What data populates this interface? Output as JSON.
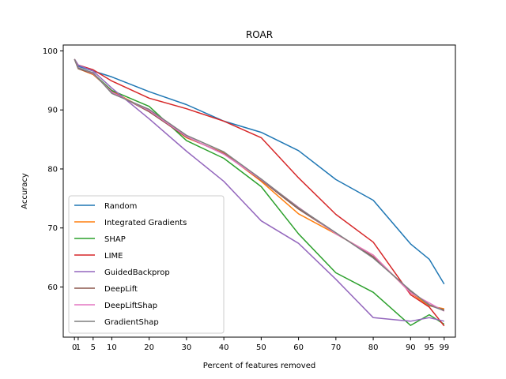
{
  "chart_data": {
    "type": "line",
    "title": "ROAR",
    "xlabel": "Percent of features removed",
    "ylabel": "Accuracy",
    "x": [
      0,
      1,
      5,
      10,
      20,
      30,
      40,
      50,
      60,
      70,
      80,
      90,
      95,
      99
    ],
    "xticks": [
      0,
      1,
      5,
      10,
      20,
      30,
      40,
      50,
      60,
      70,
      80,
      90,
      95,
      99
    ],
    "yticks": [
      60,
      70,
      80,
      90,
      100
    ],
    "xlim": [
      -3,
      102
    ],
    "ylim": [
      51.5,
      101
    ],
    "grid": false,
    "legend_position": "lower-left",
    "series": [
      {
        "name": "Random",
        "color": "#1f77b4",
        "values": [
          98.6,
          97.4,
          96.6,
          95.6,
          93.1,
          90.9,
          88.1,
          86.2,
          83.1,
          78.2,
          74.7,
          67.3,
          64.7,
          60.5
        ]
      },
      {
        "name": "Integrated Gradients",
        "color": "#ff7f0e",
        "values": [
          98.6,
          97.0,
          96.0,
          93.2,
          89.8,
          85.3,
          82.7,
          77.9,
          72.4,
          69.0,
          65.4,
          59.0,
          56.8,
          56.3
        ]
      },
      {
        "name": "SHAP",
        "color": "#2ca02c",
        "values": [
          98.6,
          97.2,
          96.2,
          93.3,
          90.6,
          84.8,
          81.8,
          77.0,
          69.0,
          62.4,
          59.1,
          53.5,
          55.3,
          53.7
        ]
      },
      {
        "name": "LIME",
        "color": "#d62728",
        "values": [
          98.6,
          97.6,
          96.8,
          94.9,
          92.0,
          90.2,
          88.1,
          85.3,
          78.5,
          72.3,
          67.6,
          58.7,
          56.6,
          53.4
        ]
      },
      {
        "name": "GuidedBackprop",
        "color": "#9467bd",
        "values": [
          98.6,
          97.6,
          96.6,
          93.7,
          88.5,
          83.0,
          77.9,
          71.2,
          67.4,
          61.3,
          54.8,
          54.2,
          54.8,
          54.2
        ]
      },
      {
        "name": "DeepLift",
        "color": "#8c564b",
        "values": [
          98.6,
          97.0,
          96.1,
          93.1,
          89.7,
          85.4,
          82.6,
          78.1,
          73.2,
          69.1,
          65.1,
          59.3,
          57.0,
          56.1
        ]
      },
      {
        "name": "DeepLiftShap",
        "color": "#e377c2",
        "values": [
          98.6,
          97.2,
          96.2,
          93.0,
          89.9,
          85.5,
          82.5,
          78.2,
          73.5,
          69.0,
          65.4,
          59.0,
          57.3,
          55.9
        ]
      },
      {
        "name": "GradientShap",
        "color": "#7f7f7f",
        "values": [
          98.6,
          97.1,
          96.3,
          92.8,
          90.1,
          85.7,
          82.9,
          78.3,
          73.4,
          69.2,
          64.9,
          59.4,
          56.9,
          56.0
        ]
      }
    ]
  }
}
